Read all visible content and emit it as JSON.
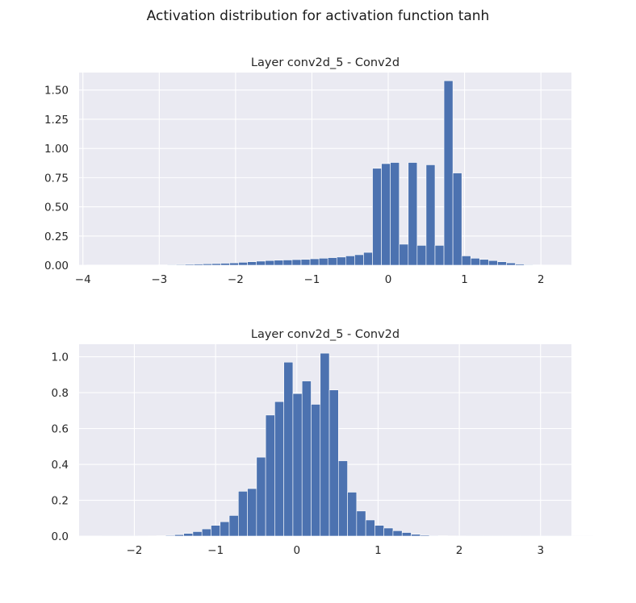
{
  "figure": {
    "suptitle": "Activation distribution for activation function tanh"
  },
  "colors": {
    "background": "#eaeaf2",
    "bar": "#4c72b0",
    "grid": "#ffffff",
    "text": "#262626"
  },
  "chart_data": [
    {
      "type": "bar",
      "title": "Layer conv2d_5 - Conv2d",
      "xlabel": "",
      "ylabel": "",
      "grid": true,
      "xlim": [
        -4.05,
        2.4
      ],
      "ylim": [
        0,
        1.65
      ],
      "xticks": [
        -4,
        -3,
        -2,
        -1,
        0,
        1,
        2
      ],
      "xtick_labels": [
        "−4",
        "−3",
        "−2",
        "−1",
        "0",
        "1",
        "2"
      ],
      "yticks": [
        0.0,
        0.25,
        0.5,
        0.75,
        1.0,
        1.25,
        1.5
      ],
      "ytick_labels": [
        "0.00",
        "0.25",
        "0.50",
        "0.75",
        "1.00",
        "1.25",
        "1.50"
      ],
      "bin_start": -3.95,
      "bin_width": 0.117,
      "values": [
        0.002,
        0.002,
        0.002,
        0.002,
        0.002,
        0.002,
        0.002,
        0.002,
        0.003,
        0.005,
        0.006,
        0.008,
        0.01,
        0.012,
        0.014,
        0.017,
        0.02,
        0.025,
        0.03,
        0.035,
        0.04,
        0.043,
        0.045,
        0.048,
        0.05,
        0.055,
        0.06,
        0.065,
        0.07,
        0.08,
        0.09,
        0.11,
        0.83,
        0.87,
        0.88,
        0.18,
        0.88,
        0.17,
        0.86,
        0.17,
        1.58,
        0.79,
        0.08,
        0.06,
        0.05,
        0.04,
        0.03,
        0.02,
        0.01,
        0.005,
        0.003,
        0.002,
        0.002,
        0.002
      ]
    },
    {
      "type": "bar",
      "title": "Layer conv2d_5 - Conv2d",
      "xlabel": "",
      "ylabel": "",
      "grid": true,
      "xlim": [
        -2.68,
        3.38
      ],
      "ylim": [
        0,
        1.07
      ],
      "xticks": [
        -2,
        -1,
        0,
        1,
        2,
        3
      ],
      "xtick_labels": [
        "−2",
        "−1",
        "0",
        "1",
        "2",
        "3"
      ],
      "yticks": [
        0.0,
        0.2,
        0.4,
        0.6,
        0.8,
        1.0
      ],
      "ytick_labels": [
        "0.0",
        "0.2",
        "0.4",
        "0.6",
        "0.8",
        "1.0"
      ],
      "bin_start": -2.4,
      "bin_width": 0.112,
      "values": [
        0.0005,
        0.0005,
        0.0005,
        0.0005,
        0.0008,
        0.001,
        0.002,
        0.004,
        0.008,
        0.015,
        0.025,
        0.04,
        0.06,
        0.08,
        0.115,
        0.25,
        0.265,
        0.44,
        0.675,
        0.75,
        0.97,
        0.795,
        0.865,
        0.735,
        1.02,
        0.815,
        0.42,
        0.245,
        0.14,
        0.09,
        0.06,
        0.045,
        0.03,
        0.02,
        0.01,
        0.005,
        0.003,
        0.002,
        0.001,
        0.0008,
        0.0005,
        0.0005,
        0.0005,
        0.0005,
        0.0005,
        0.0005,
        0.0005,
        0.0005,
        0.0005,
        0.0005,
        0.0005,
        0.0005,
        0.0005,
        0.0005
      ]
    }
  ]
}
